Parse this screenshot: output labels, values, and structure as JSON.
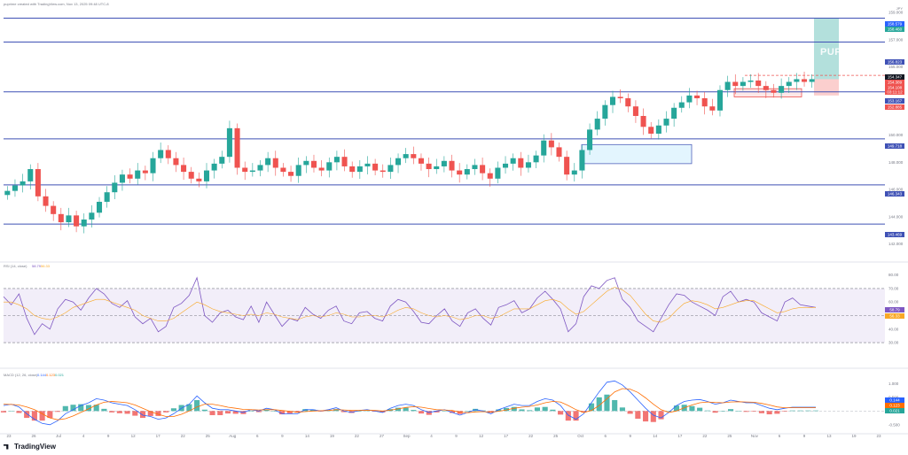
{
  "header": {
    "caption": "puprime created with TradingView.com, Nov 13, 2025 09:48 UTC-8"
  },
  "watermark": {
    "name": "PUPRIME"
  },
  "branding": {
    "name": "TradingView"
  },
  "colors": {
    "up": "#26a69a",
    "down": "#ef5350",
    "level_line": "#3f51b5",
    "rsi": "#7e57c2",
    "rsi_ma": "#f9a825",
    "macd": "#2962ff",
    "signal": "#ff6d00"
  },
  "chart_data": [
    {
      "type": "candlestick",
      "panel": "price",
      "ylim": [
        141.2,
        159.0
      ],
      "y_ticks": [
        142.0,
        144.0,
        146.0,
        148.0,
        150.0,
        152.0,
        154.0,
        155.0,
        157.0,
        159.0
      ],
      "top_label": "JPY",
      "x_labels": [
        "23",
        "26",
        "Jul",
        "4",
        "9",
        "12",
        "17",
        "22",
        "25",
        "Aug",
        "6",
        "9",
        "14",
        "19",
        "22",
        "27",
        "Sep",
        "4",
        "9",
        "12",
        "17",
        "22",
        "25",
        "Oct",
        "6",
        "9",
        "14",
        "17",
        "22",
        "25",
        "Nov",
        "6",
        "9",
        "13",
        "19",
        "23"
      ],
      "horizontal_levels": [
        158.575,
        156.823,
        153.167,
        149.718,
        146.343,
        143.469
      ],
      "price_markers": [
        {
          "label": "158.579",
          "color": "#2962ff"
        },
        {
          "label": "158.460",
          "color": "#26a69a"
        },
        {
          "label": "156.823",
          "color": "#3f51b5"
        },
        {
          "label": "154.347",
          "color": "#131722"
        },
        {
          "label": "154.389",
          "color": "#ef5350"
        },
        {
          "label": "154.108",
          "color": "#ef5350"
        },
        {
          "label": "03:11:12",
          "color": "#ef5350"
        },
        {
          "label": "153.167",
          "color": "#3f51b5"
        },
        {
          "label": "152.885",
          "color": "#ef5350"
        },
        {
          "label": "149.718",
          "color": "#3f51b5"
        },
        {
          "label": "146.343",
          "color": "#3f51b5"
        },
        {
          "label": "143.469",
          "color": "#3f51b5"
        }
      ],
      "close_path": [
        145.9,
        146.3,
        146.6,
        147.5,
        145.5,
        144.8,
        144.2,
        143.6,
        144.1,
        143.3,
        143.8,
        144.3,
        145.1,
        145.8,
        146.5,
        147.1,
        146.8,
        147.4,
        147.2,
        148.3,
        148.9,
        148.3,
        147.8,
        147.3,
        146.8,
        146.6,
        147.4,
        147.9,
        148.4,
        150.5,
        147.6,
        147.3,
        147.4,
        147.8,
        148.3,
        147.6,
        147.3,
        147.0,
        147.8,
        148.1,
        147.6,
        147.4,
        148.0,
        148.4,
        147.7,
        147.3,
        147.7,
        147.9,
        147.4,
        147.3,
        147.8,
        148.3,
        148.6,
        148.3,
        147.9,
        147.5,
        147.7,
        148.1,
        147.4,
        147.1,
        147.5,
        147.8,
        147.2,
        146.8,
        147.6,
        147.9,
        148.3,
        147.6,
        148.0,
        148.5,
        149.6,
        149.1,
        148.4,
        147.1,
        147.4,
        148.9,
        150.4,
        151.2,
        152.2,
        152.8,
        152.7,
        152.1,
        151.4,
        150.6,
        150.1,
        150.7,
        151.2,
        152.0,
        152.4,
        152.9,
        152.7,
        152.1,
        151.8,
        153.3,
        153.9,
        153.6,
        153.9,
        154.0,
        153.6,
        153.3,
        153.1,
        153.6,
        153.9,
        154.1,
        153.9,
        154.1
      ]
    },
    {
      "type": "line",
      "panel": "rsi",
      "title": "RSI (14, close)",
      "legend": [
        "58.79",
        "56.33"
      ],
      "ylim": [
        15,
        85
      ],
      "y_ticks": [
        80.0,
        70.0,
        60.0,
        50.0,
        40.0,
        30.0
      ],
      "band": [
        30,
        70
      ],
      "series": [
        {
          "name": "RSI",
          "values": [
            64,
            58,
            66,
            48,
            36,
            44,
            40,
            55,
            62,
            60,
            54,
            63,
            70,
            66,
            59,
            56,
            61,
            49,
            44,
            48,
            38,
            42,
            56,
            59,
            65,
            78,
            50,
            45,
            52,
            54,
            49,
            47,
            57,
            45,
            60,
            51,
            42,
            48,
            46,
            56,
            51,
            48,
            54,
            57,
            46,
            44,
            52,
            53,
            48,
            46,
            57,
            62,
            60,
            53,
            45,
            44,
            50,
            55,
            46,
            42,
            52,
            55,
            48,
            43,
            56,
            58,
            61,
            52,
            55,
            63,
            68,
            62,
            55,
            38,
            44,
            64,
            72,
            70,
            76,
            78,
            62,
            56,
            46,
            42,
            38,
            48,
            58,
            66,
            65,
            60,
            57,
            54,
            50,
            64,
            68,
            60,
            62,
            60,
            52,
            49,
            46,
            60,
            63,
            58,
            57,
            56
          ]
        },
        {
          "name": "RSI-based MA",
          "values": [
            60,
            60,
            58,
            55,
            50,
            48,
            47,
            49,
            52,
            56,
            58,
            60,
            62,
            62,
            60,
            58,
            56,
            54,
            50,
            48,
            46,
            46,
            48,
            52,
            56,
            60,
            58,
            55,
            53,
            52,
            51,
            50,
            51,
            50,
            52,
            51,
            49,
            48,
            47,
            49,
            50,
            49,
            50,
            52,
            51,
            49,
            49,
            50,
            50,
            49,
            51,
            54,
            56,
            55,
            52,
            50,
            49,
            50,
            49,
            47,
            48,
            50,
            50,
            48,
            49,
            52,
            55,
            55,
            55,
            58,
            61,
            62,
            60,
            55,
            51,
            53,
            58,
            63,
            68,
            71,
            69,
            65,
            58,
            51,
            46,
            45,
            48,
            54,
            59,
            61,
            60,
            58,
            55,
            56,
            58,
            60,
            61,
            61,
            58,
            55,
            52,
            53,
            55,
            56,
            56,
            56
          ]
        }
      ]
    },
    {
      "type": "line",
      "panel": "macd",
      "title": "MACD (12, 26, close)",
      "legend": [
        "0.144",
        "0.123",
        "0.021"
      ],
      "ylim": [
        -0.7,
        1.4
      ],
      "y_ticks": [
        1.0,
        0.5,
        0.0,
        -0.5
      ],
      "series": [
        {
          "name": "MACD",
          "values": [
            0.2,
            0.25,
            0.15,
            -0.1,
            -0.3,
            -0.45,
            -0.5,
            -0.35,
            -0.1,
            0.05,
            0.2,
            0.3,
            0.45,
            0.4,
            0.3,
            0.25,
            0.2,
            0.05,
            -0.15,
            -0.2,
            -0.3,
            -0.25,
            -0.1,
            0.1,
            0.25,
            0.55,
            0.3,
            0.1,
            0.05,
            0.05,
            0.0,
            -0.05,
            0.05,
            0.0,
            0.1,
            0.05,
            -0.1,
            -0.1,
            -0.1,
            0.05,
            0.05,
            0.0,
            0.05,
            0.12,
            0.0,
            -0.05,
            0.02,
            0.05,
            0.0,
            -0.05,
            0.1,
            0.2,
            0.25,
            0.2,
            0.05,
            -0.05,
            0.0,
            0.05,
            -0.05,
            -0.15,
            -0.05,
            0.05,
            0.0,
            -0.1,
            0.05,
            0.15,
            0.25,
            0.2,
            0.2,
            0.35,
            0.45,
            0.4,
            0.2,
            -0.15,
            -0.3,
            -0.1,
            0.3,
            0.7,
            1.05,
            1.1,
            0.95,
            0.7,
            0.4,
            0.1,
            -0.15,
            -0.25,
            -0.05,
            0.2,
            0.35,
            0.4,
            0.42,
            0.35,
            0.25,
            0.3,
            0.4,
            0.35,
            0.3,
            0.3,
            0.2,
            0.1,
            0.05,
            0.1,
            0.14,
            0.14,
            0.14,
            0.14
          ]
        },
        {
          "name": "Signal",
          "values": [
            0.25,
            0.24,
            0.22,
            0.15,
            0.05,
            -0.1,
            -0.25,
            -0.32,
            -0.28,
            -0.18,
            -0.05,
            0.08,
            0.22,
            0.32,
            0.35,
            0.33,
            0.3,
            0.22,
            0.1,
            -0.02,
            -0.12,
            -0.2,
            -0.2,
            -0.12,
            0.0,
            0.15,
            0.25,
            0.25,
            0.2,
            0.14,
            0.1,
            0.06,
            0.05,
            0.04,
            0.05,
            0.05,
            0.02,
            -0.01,
            -0.04,
            -0.02,
            0.0,
            0.01,
            0.02,
            0.05,
            0.04,
            0.02,
            0.02,
            0.03,
            0.02,
            0.0,
            0.03,
            0.08,
            0.13,
            0.16,
            0.14,
            0.09,
            0.05,
            0.04,
            0.02,
            -0.04,
            -0.06,
            -0.03,
            -0.02,
            -0.04,
            -0.01,
            0.04,
            0.1,
            0.14,
            0.17,
            0.22,
            0.3,
            0.35,
            0.33,
            0.2,
            0.05,
            -0.05,
            0.02,
            0.2,
            0.45,
            0.7,
            0.82,
            0.8,
            0.68,
            0.48,
            0.25,
            0.05,
            -0.05,
            0.0,
            0.12,
            0.22,
            0.3,
            0.33,
            0.31,
            0.3,
            0.33,
            0.34,
            0.33,
            0.32,
            0.28,
            0.22,
            0.15,
            0.12,
            0.12,
            0.12,
            0.12,
            0.12
          ]
        }
      ]
    }
  ]
}
